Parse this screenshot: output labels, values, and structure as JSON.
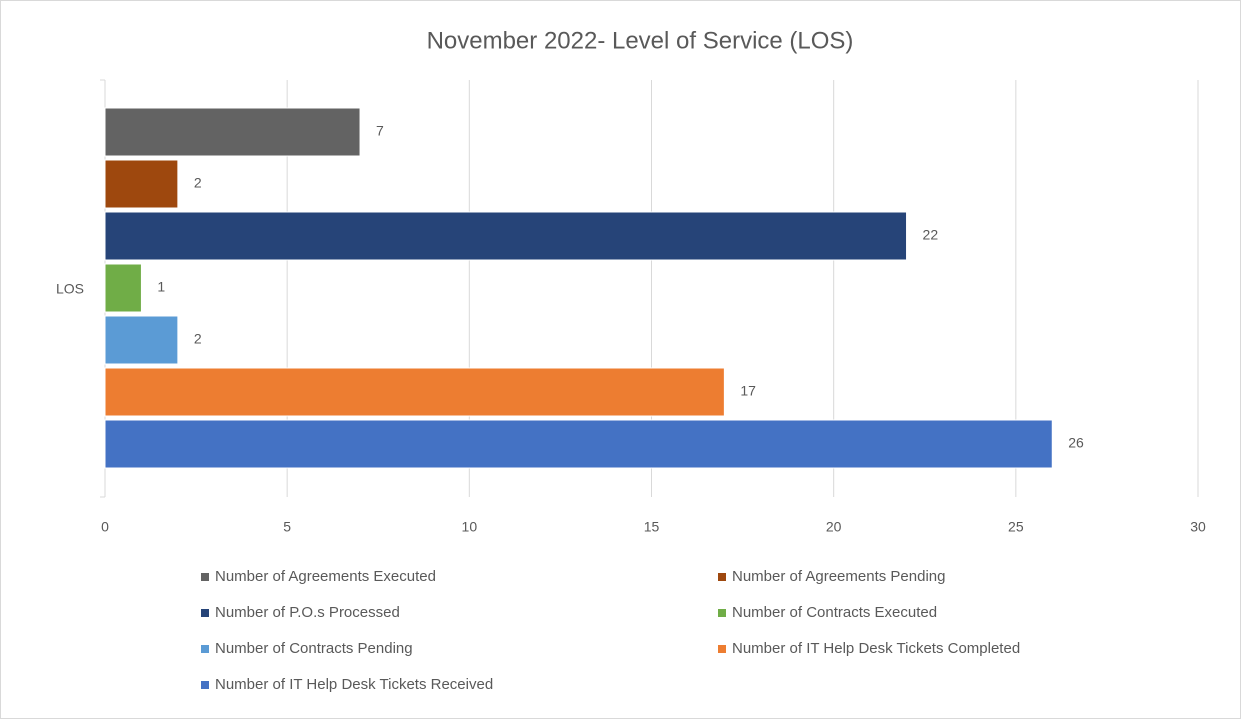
{
  "chart_data": {
    "type": "bar",
    "orientation": "horizontal",
    "title": "November 2022- Level of Service (LOS)",
    "categories": [
      "LOS"
    ],
    "series": [
      {
        "name": "Number of Agreements Executed",
        "color": "#636363",
        "values": [
          7
        ]
      },
      {
        "name": "Number of Agreements Pending",
        "color": "#9e480e",
        "values": [
          2
        ]
      },
      {
        "name": "Number of P.O.s Processed",
        "color": "#264478",
        "values": [
          22
        ]
      },
      {
        "name": "Number of Contracts Executed",
        "color": "#70ad47",
        "values": [
          1
        ]
      },
      {
        "name": "Number of Contracts Pending",
        "color": "#5b9bd5",
        "values": [
          2
        ]
      },
      {
        "name": "Number of IT Help Desk Tickets Completed",
        "color": "#ed7d31",
        "values": [
          17
        ]
      },
      {
        "name": "Number of IT Help Desk Tickets Received",
        "color": "#4472c4",
        "values": [
          26
        ]
      }
    ],
    "xlim": [
      0,
      30
    ],
    "xticks": [
      0,
      5,
      10,
      15,
      20,
      25,
      30
    ],
    "grid": true,
    "legend": "bottom"
  }
}
